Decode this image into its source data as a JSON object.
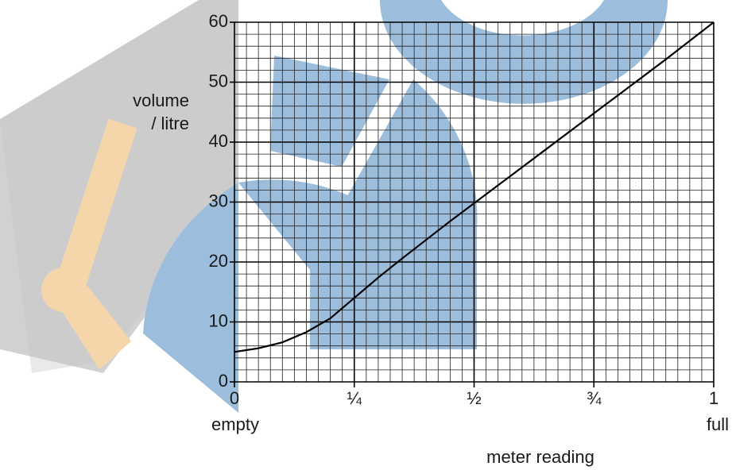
{
  "chart_data": {
    "type": "line",
    "xlabel": "meter reading",
    "ylabel": [
      "volume",
      "/ litre"
    ],
    "x_min_label": "empty",
    "x_max_label": "full",
    "x": [
      0,
      0.05,
      0.1,
      0.15,
      0.2,
      0.25,
      0.3,
      0.35,
      0.4,
      0.45,
      0.5,
      0.55,
      0.6,
      0.65,
      0.7,
      0.75,
      0.8,
      0.85,
      0.9,
      0.95,
      1
    ],
    "series": [
      {
        "color": "#000000",
        "values": [
          5,
          5.6,
          6.6,
          8.3,
          10.6,
          14,
          17.4,
          20.6,
          23.7,
          26.8,
          29.8,
          32.8,
          35.8,
          38.8,
          41.8,
          44.8,
          47.8,
          50.8,
          53.8,
          56.9,
          60
        ]
      }
    ],
    "xlim": [
      0,
      1
    ],
    "ylim": [
      0,
      60
    ],
    "xticks": [
      0,
      {
        "value": 0.25,
        "label": "¼"
      },
      {
        "value": 0.5,
        "label": "½"
      },
      {
        "value": 0.75,
        "label": "¾"
      },
      1
    ],
    "yticks": [
      0,
      10,
      20,
      30,
      40,
      50,
      60
    ],
    "grid": true,
    "minor_x_step": 0.025,
    "minor_y_step": 2
  }
}
